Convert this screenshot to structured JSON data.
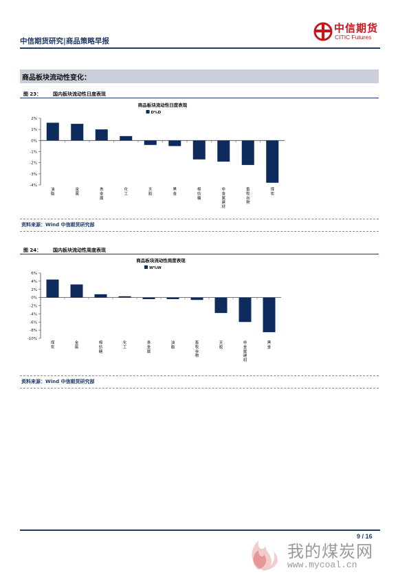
{
  "header": {
    "title": "中信期货研究|商品策略早报",
    "logo_cn": "中信期货",
    "logo_en": "CITIC Futures"
  },
  "section": {
    "title": "商品板块流动性变化："
  },
  "figures": [
    {
      "num": "图 23：",
      "caption": "国内板块流动性日度表现",
      "source": "资料来源：Wind 中信期货研究部"
    },
    {
      "num": "图 24：",
      "caption": "国内板块流动性周度表现",
      "source": "资料来源：Wind 中信期货研究部"
    }
  ],
  "chart_data": [
    {
      "type": "bar",
      "title": "商品板块流动性日度表现",
      "legend": "D%D",
      "legend_position": "top",
      "categories": [
        "油脂",
        "金属",
        "贵金属",
        "化工",
        "天胶",
        "黑金",
        "棉纺糖",
        "非金属建材",
        "畜牧谷物",
        "煤炭"
      ],
      "values": [
        1.6,
        1.5,
        1.0,
        0.4,
        -0.4,
        -0.5,
        -1.7,
        -1.9,
        -2.2,
        -3.8
      ],
      "ylim": [
        -4,
        2
      ],
      "yticks": [
        "2%",
        "1%",
        "0%",
        "-1%",
        "-2%",
        "-3%",
        "-4%"
      ],
      "ytick_values": [
        2,
        1,
        0,
        -1,
        -2,
        -3,
        -4
      ],
      "color": "#0d2b5c",
      "grid": false
    },
    {
      "type": "bar",
      "title": "商品板块流动性周度表现",
      "legend": "W%W",
      "legend_position": "top",
      "categories": [
        "煤炭",
        "金属",
        "棉纺糖",
        "化工",
        "贵金属",
        "油脂",
        "畜牧谷物",
        "天胶",
        "非金属建材",
        "黑金"
      ],
      "values": [
        4.4,
        3.2,
        0.8,
        0.3,
        -0.4,
        -0.4,
        -0.6,
        -3.8,
        -6.0,
        -8.5
      ],
      "ylim": [
        -10,
        6
      ],
      "yticks": [
        "6%",
        "4%",
        "2%",
        "0%",
        "-2%",
        "-4%",
        "-6%",
        "-8%",
        "-10%"
      ],
      "ytick_values": [
        6,
        4,
        2,
        0,
        -2,
        -4,
        -6,
        -8,
        -10
      ],
      "color": "#0d2b5c",
      "grid": false
    }
  ],
  "footer": {
    "page": "9 / 16"
  },
  "watermark": {
    "cn": "我的煤炭网",
    "url": "www.mycoal.cn"
  }
}
